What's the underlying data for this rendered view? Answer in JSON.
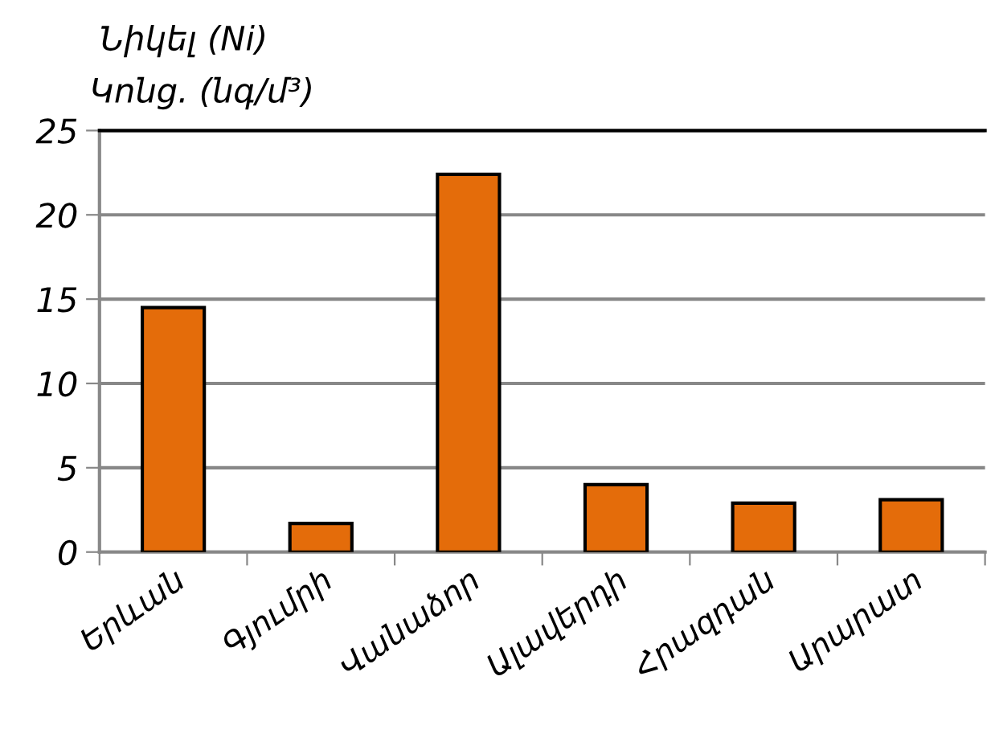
{
  "chart_data": {
    "type": "bar",
    "title": "Նիկել (Ni)",
    "ylabel": "Կոնց. (նգ/մ³)",
    "categories": [
      "Երևան",
      "Գյումրի",
      "Վանաձոր",
      "Ալավերդի",
      "Հրազդան",
      "Արարատ"
    ],
    "values": [
      14.5,
      1.7,
      22.4,
      4.0,
      2.9,
      3.1
    ],
    "color": "#e46c0a",
    "ylim": [
      0,
      25
    ],
    "yticks": [
      0,
      5,
      10,
      15,
      20,
      25
    ],
    "grid": "y"
  }
}
